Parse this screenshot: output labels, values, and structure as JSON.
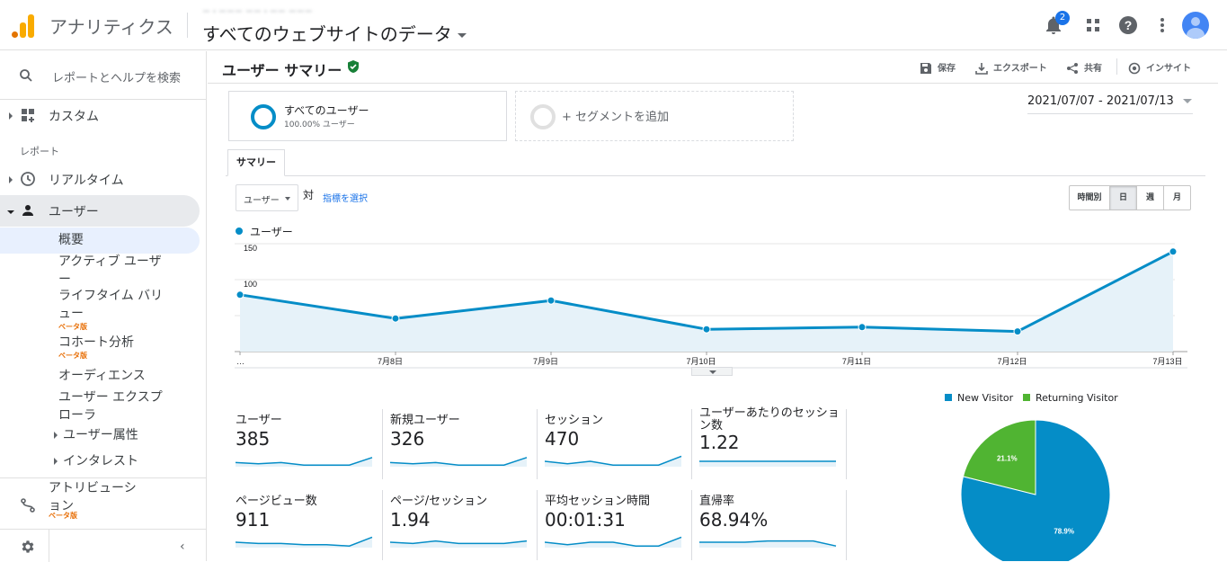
{
  "topbar": {
    "app_title": "アナリティクス",
    "account_line": "ー・ーーー ーー・ーー ーーー",
    "view_title": "すべてのウェブサイトのデータ",
    "notification_count": "2"
  },
  "sidebar": {
    "search_placeholder": "レポートとヘルプを検索",
    "custom": "カスタム",
    "reports_section": "レポート",
    "realtime": "リアルタイム",
    "user": "ユーザー",
    "user_sub": {
      "overview": "概要",
      "active_users": "アクティブ ユーザー",
      "lifetime_value": "ライフタイム バリュー",
      "lifetime_beta": "ベータ版",
      "cohort": "コホート分析",
      "cohort_beta": "ベータ版",
      "audience": "オーディエンス",
      "explorer": "ユーザー エクスプローラ",
      "attributes": "ユーザー属性",
      "interests": "インタレスト"
    },
    "attribution": "アトリビューション",
    "attribution_beta": "ベータ版"
  },
  "main": {
    "page_title": "ユーザー サマリー",
    "actions": {
      "save": "保存",
      "export": "エクスポート",
      "share": "共有",
      "insight": "インサイト"
    },
    "segment_all": {
      "name": "すべてのユーザー",
      "sub": "100.00% ユーザー"
    },
    "segment_add": "+ セグメントを追加",
    "date_range": "2021/07/07 - 2021/07/13",
    "tab_summary": "サマリー",
    "metric_select": "ユーザー",
    "vs": "対",
    "pick_metric": "指標を選択",
    "granularity": [
      "時間別",
      "日",
      "週",
      "月"
    ],
    "selected_granularity": "日",
    "legend_label": "ユーザー"
  },
  "chart_data": [
    {
      "type": "line",
      "series": [
        {
          "name": "ユーザー",
          "x": [
            "2021/07/07",
            "7月8日",
            "7月9日",
            "7月10日",
            "7月11日",
            "7月12日",
            "7月13日"
          ],
          "values": [
            79,
            46,
            71,
            31,
            34,
            28,
            139
          ]
        }
      ],
      "x_tick_labels": [
        "…",
        "7月8日",
        "7月9日",
        "7月10日",
        "7月11日",
        "7月12日",
        "7月13日"
      ],
      "y_ticks": [
        50,
        100,
        150
      ],
      "ylim": [
        0,
        150
      ],
      "grid": true,
      "area_fill": true,
      "color": "#058dc7"
    },
    {
      "type": "pie",
      "categories": [
        "New Visitor",
        "Returning Visitor"
      ],
      "values": [
        78.9,
        21.1
      ],
      "value_labels": [
        "78.9%",
        "21.1%"
      ],
      "colors": [
        "#058dc7",
        "#50b432"
      ],
      "legend": "top"
    }
  ],
  "metrics": [
    {
      "label": "ユーザー",
      "value": "385",
      "spark": [
        4,
        3,
        4,
        2,
        2,
        2,
        8
      ]
    },
    {
      "label": "新規ユーザー",
      "value": "326",
      "spark": [
        4,
        3,
        4,
        2,
        2,
        2,
        8
      ]
    },
    {
      "label": "セッション",
      "value": "470",
      "spark": [
        5,
        3,
        5,
        2,
        2,
        2,
        9
      ]
    },
    {
      "label": "ユーザーあたりのセッション数",
      "value": "1.22",
      "spark": [
        5,
        5,
        5,
        5,
        5,
        5,
        5
      ]
    },
    {
      "label": "ページビュー数",
      "value": "911",
      "spark": [
        5,
        4,
        4,
        3,
        3,
        2,
        9
      ]
    },
    {
      "label": "ページ/セッション",
      "value": "1.94",
      "spark": [
        5,
        4,
        6,
        4,
        4,
        4,
        6
      ]
    },
    {
      "label": "平均セッション時間",
      "value": "00:01:31",
      "spark": [
        5,
        3,
        5,
        5,
        2,
        2,
        9
      ]
    },
    {
      "label": "直帰率",
      "value": "68.94%",
      "spark": [
        5,
        5,
        5,
        6,
        6,
        6,
        2
      ]
    }
  ],
  "colors": {
    "accent": "#058dc7",
    "returning": "#50b432",
    "link": "#1a73e8",
    "beta": "#e8710a"
  }
}
